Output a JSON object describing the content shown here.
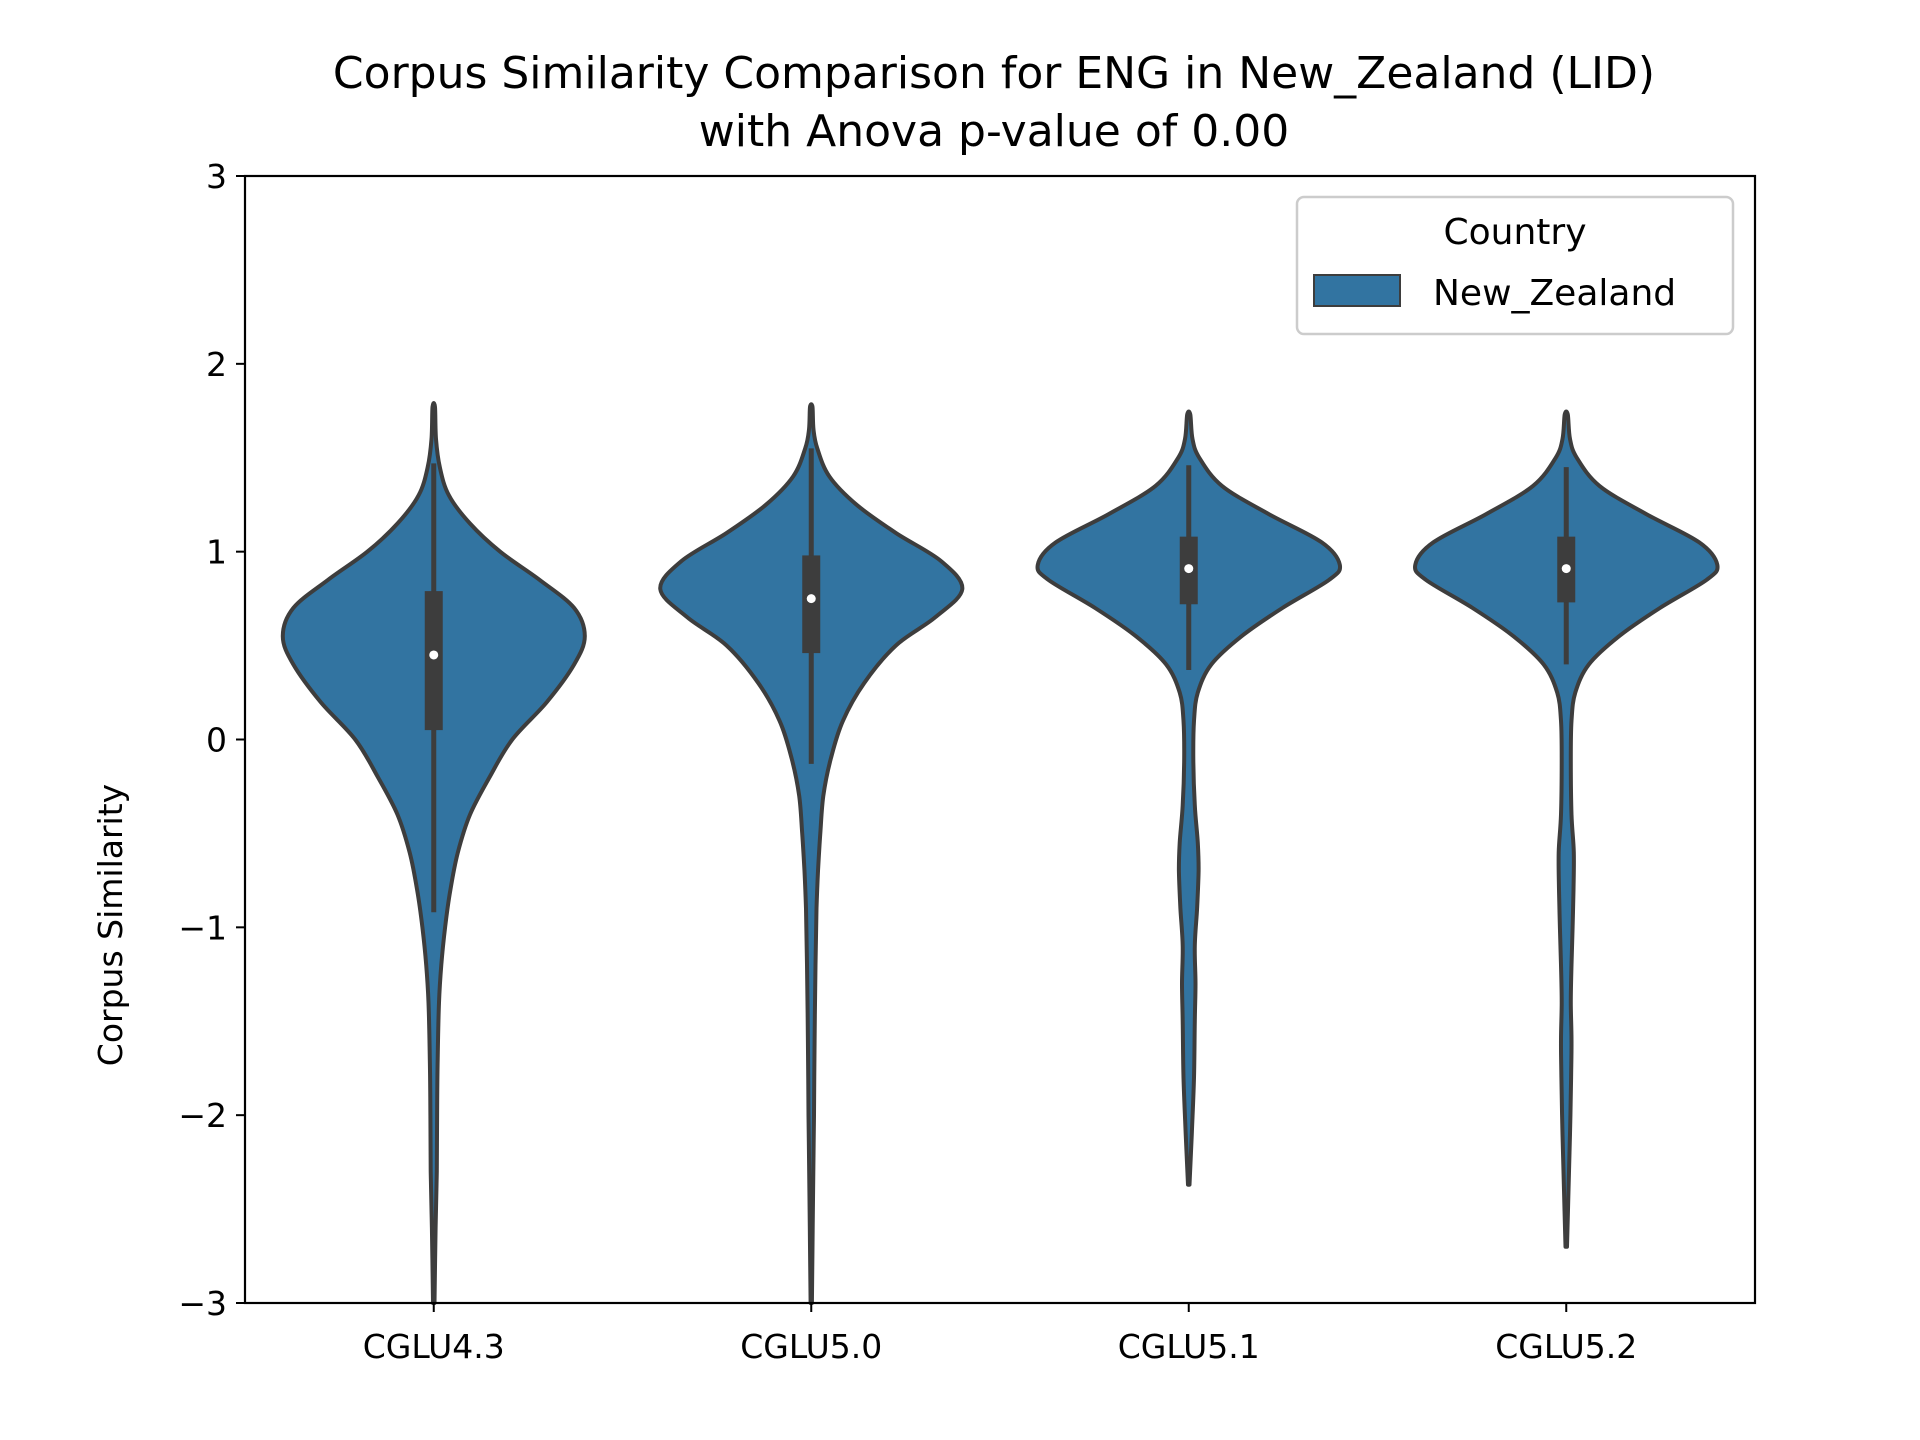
{
  "chart_data": {
    "type": "violin",
    "title": [
      "Corpus Similarity Comparison for ENG in New_Zealand (LID)",
      "with Anova p-value of 0.00"
    ],
    "xlabel": "",
    "ylabel": "Corpus Similarity",
    "ylim": [
      -3,
      3
    ],
    "yticks": [
      3,
      2,
      1,
      0,
      -1,
      -2,
      -3
    ],
    "ytick_labels": [
      "3",
      "2",
      "1",
      "0",
      "−1",
      "−2",
      "−3"
    ],
    "categories": [
      "CGLU4.3",
      "CGLU5.0",
      "CGLU5.1",
      "CGLU5.2"
    ],
    "legend": {
      "title": "Country",
      "entries": [
        {
          "name": "New_Zealand",
          "color": "#3274a1"
        }
      ],
      "position": "top-right"
    },
    "fill_color": "#3274a1",
    "line_color": "#3d3d3d",
    "grid": false,
    "series": [
      {
        "name": "New_Zealand",
        "violins": [
          {
            "category": "CGLU4.3",
            "min": -3.0,
            "max": 1.77,
            "median": 0.45,
            "q1": 0.05,
            "q3": 0.79,
            "whisker_low": -0.92,
            "whisker_high": 1.47,
            "density": [
              [
                -3.0,
                0.005
              ],
              [
                -2.6,
                0.012
              ],
              [
                -2.3,
                0.02
              ],
              [
                -2.0,
                0.022
              ],
              [
                -1.7,
                0.026
              ],
              [
                -1.4,
                0.035
              ],
              [
                -1.2,
                0.05
              ],
              [
                -1.0,
                0.075
              ],
              [
                -0.8,
                0.11
              ],
              [
                -0.6,
                0.16
              ],
              [
                -0.4,
                0.24
              ],
              [
                -0.2,
                0.37
              ],
              [
                0.0,
                0.52
              ],
              [
                0.2,
                0.75
              ],
              [
                0.4,
                0.93
              ],
              [
                0.55,
                1.0
              ],
              [
                0.7,
                0.93
              ],
              [
                0.85,
                0.7
              ],
              [
                1.0,
                0.44
              ],
              [
                1.15,
                0.24
              ],
              [
                1.3,
                0.1
              ],
              [
                1.45,
                0.04
              ],
              [
                1.6,
                0.015
              ],
              [
                1.77,
                0.008
              ]
            ]
          },
          {
            "category": "CGLU5.0",
            "min": -3.0,
            "max": 1.77,
            "median": 0.75,
            "q1": 0.46,
            "q3": 0.98,
            "whisker_low": -0.13,
            "whisker_high": 1.55,
            "density": [
              [
                -3.0,
                0.004
              ],
              [
                -2.7,
                0.008
              ],
              [
                -2.4,
                0.012
              ],
              [
                -2.0,
                0.018
              ],
              [
                -1.6,
                0.022
              ],
              [
                -1.2,
                0.028
              ],
              [
                -0.9,
                0.035
              ],
              [
                -0.7,
                0.045
              ],
              [
                -0.5,
                0.06
              ],
              [
                -0.3,
                0.08
              ],
              [
                -0.1,
                0.13
              ],
              [
                0.1,
                0.21
              ],
              [
                0.3,
                0.35
              ],
              [
                0.5,
                0.56
              ],
              [
                0.65,
                0.82
              ],
              [
                0.8,
                1.0
              ],
              [
                0.95,
                0.86
              ],
              [
                1.1,
                0.56
              ],
              [
                1.25,
                0.3
              ],
              [
                1.4,
                0.12
              ],
              [
                1.55,
                0.04
              ],
              [
                1.65,
                0.015
              ],
              [
                1.77,
                0.008
              ]
            ]
          },
          {
            "category": "CGLU5.1",
            "min": -2.37,
            "max": 1.73,
            "median": 0.91,
            "q1": 0.72,
            "q3": 1.08,
            "whisker_low": 0.37,
            "whisker_high": 1.46,
            "density": [
              [
                -2.37,
                0.005
              ],
              [
                -2.1,
                0.02
              ],
              [
                -1.8,
                0.035
              ],
              [
                -1.5,
                0.04
              ],
              [
                -1.3,
                0.045
              ],
              [
                -1.1,
                0.04
              ],
              [
                -0.9,
                0.055
              ],
              [
                -0.7,
                0.065
              ],
              [
                -0.55,
                0.06
              ],
              [
                -0.35,
                0.04
              ],
              [
                -0.1,
                0.03
              ],
              [
                0.1,
                0.035
              ],
              [
                0.25,
                0.06
              ],
              [
                0.4,
                0.15
              ],
              [
                0.55,
                0.35
              ],
              [
                0.7,
                0.62
              ],
              [
                0.85,
                0.93
              ],
              [
                0.93,
                1.0
              ],
              [
                1.05,
                0.88
              ],
              [
                1.2,
                0.53
              ],
              [
                1.35,
                0.22
              ],
              [
                1.5,
                0.07
              ],
              [
                1.6,
                0.025
              ],
              [
                1.73,
                0.01
              ]
            ]
          },
          {
            "category": "CGLU5.2",
            "min": -2.7,
            "max": 1.73,
            "median": 0.91,
            "q1": 0.73,
            "q3": 1.08,
            "whisker_low": 0.4,
            "whisker_high": 1.45,
            "density": [
              [
                -2.7,
                0.005
              ],
              [
                -2.4,
                0.015
              ],
              [
                -2.1,
                0.025
              ],
              [
                -1.8,
                0.032
              ],
              [
                -1.6,
                0.035
              ],
              [
                -1.4,
                0.03
              ],
              [
                -1.2,
                0.035
              ],
              [
                -1.0,
                0.042
              ],
              [
                -0.8,
                0.048
              ],
              [
                -0.6,
                0.05
              ],
              [
                -0.4,
                0.035
              ],
              [
                -0.1,
                0.03
              ],
              [
                0.1,
                0.035
              ],
              [
                0.25,
                0.06
              ],
              [
                0.4,
                0.15
              ],
              [
                0.55,
                0.35
              ],
              [
                0.7,
                0.62
              ],
              [
                0.85,
                0.93
              ],
              [
                0.93,
                1.0
              ],
              [
                1.05,
                0.88
              ],
              [
                1.2,
                0.53
              ],
              [
                1.35,
                0.22
              ],
              [
                1.5,
                0.07
              ],
              [
                1.6,
                0.025
              ],
              [
                1.73,
                0.01
              ]
            ]
          }
        ]
      }
    ]
  }
}
